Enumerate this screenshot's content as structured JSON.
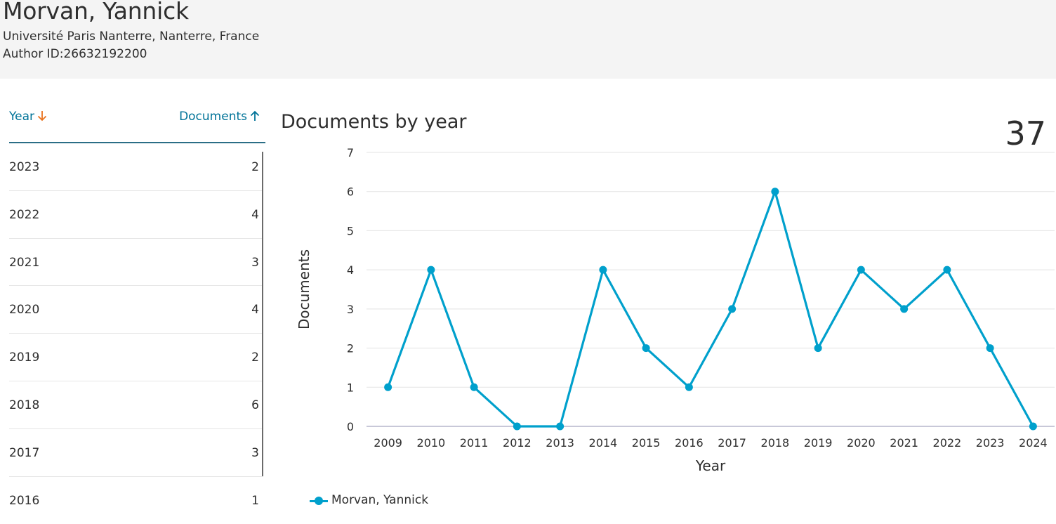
{
  "author": {
    "name": "Morvan, Yannick",
    "affiliation": "Université Paris Nanterre, Nanterre, France",
    "author_id": "Author ID:26632192200"
  },
  "table": {
    "col_year": "Year",
    "col_documents": "Documents",
    "year_sort_icon": "arrow-down-icon",
    "documents_sort_icon": "arrow-up-icon",
    "accent_sort_color": "#e9711c",
    "rows": [
      {
        "year": "2023",
        "count": "2"
      },
      {
        "year": "2022",
        "count": "4"
      },
      {
        "year": "2021",
        "count": "3"
      },
      {
        "year": "2020",
        "count": "4"
      },
      {
        "year": "2019",
        "count": "2"
      },
      {
        "year": "2018",
        "count": "6"
      },
      {
        "year": "2017",
        "count": "3"
      },
      {
        "year": "2016",
        "count": "1"
      }
    ]
  },
  "chart": {
    "title": "Documents by year",
    "total": "37",
    "legend_label": "Morvan, Yannick",
    "series_color": "#00a0cc"
  },
  "chart_data": {
    "type": "line",
    "xlabel": "Year",
    "ylabel": "Documents",
    "ylim": [
      0,
      7
    ],
    "y_ticks": [
      0,
      1,
      2,
      3,
      4,
      5,
      6,
      7
    ],
    "categories": [
      "2009",
      "2010",
      "2011",
      "2012",
      "2013",
      "2014",
      "2015",
      "2016",
      "2017",
      "2018",
      "2019",
      "2020",
      "2021",
      "2022",
      "2023",
      "2024"
    ],
    "series": [
      {
        "name": "Morvan, Yannick",
        "values": [
          1,
          4,
          1,
          0,
          0,
          4,
          2,
          1,
          3,
          6,
          2,
          4,
          3,
          4,
          2,
          0
        ]
      }
    ],
    "grid": true,
    "legend_position": "bottom-left"
  }
}
